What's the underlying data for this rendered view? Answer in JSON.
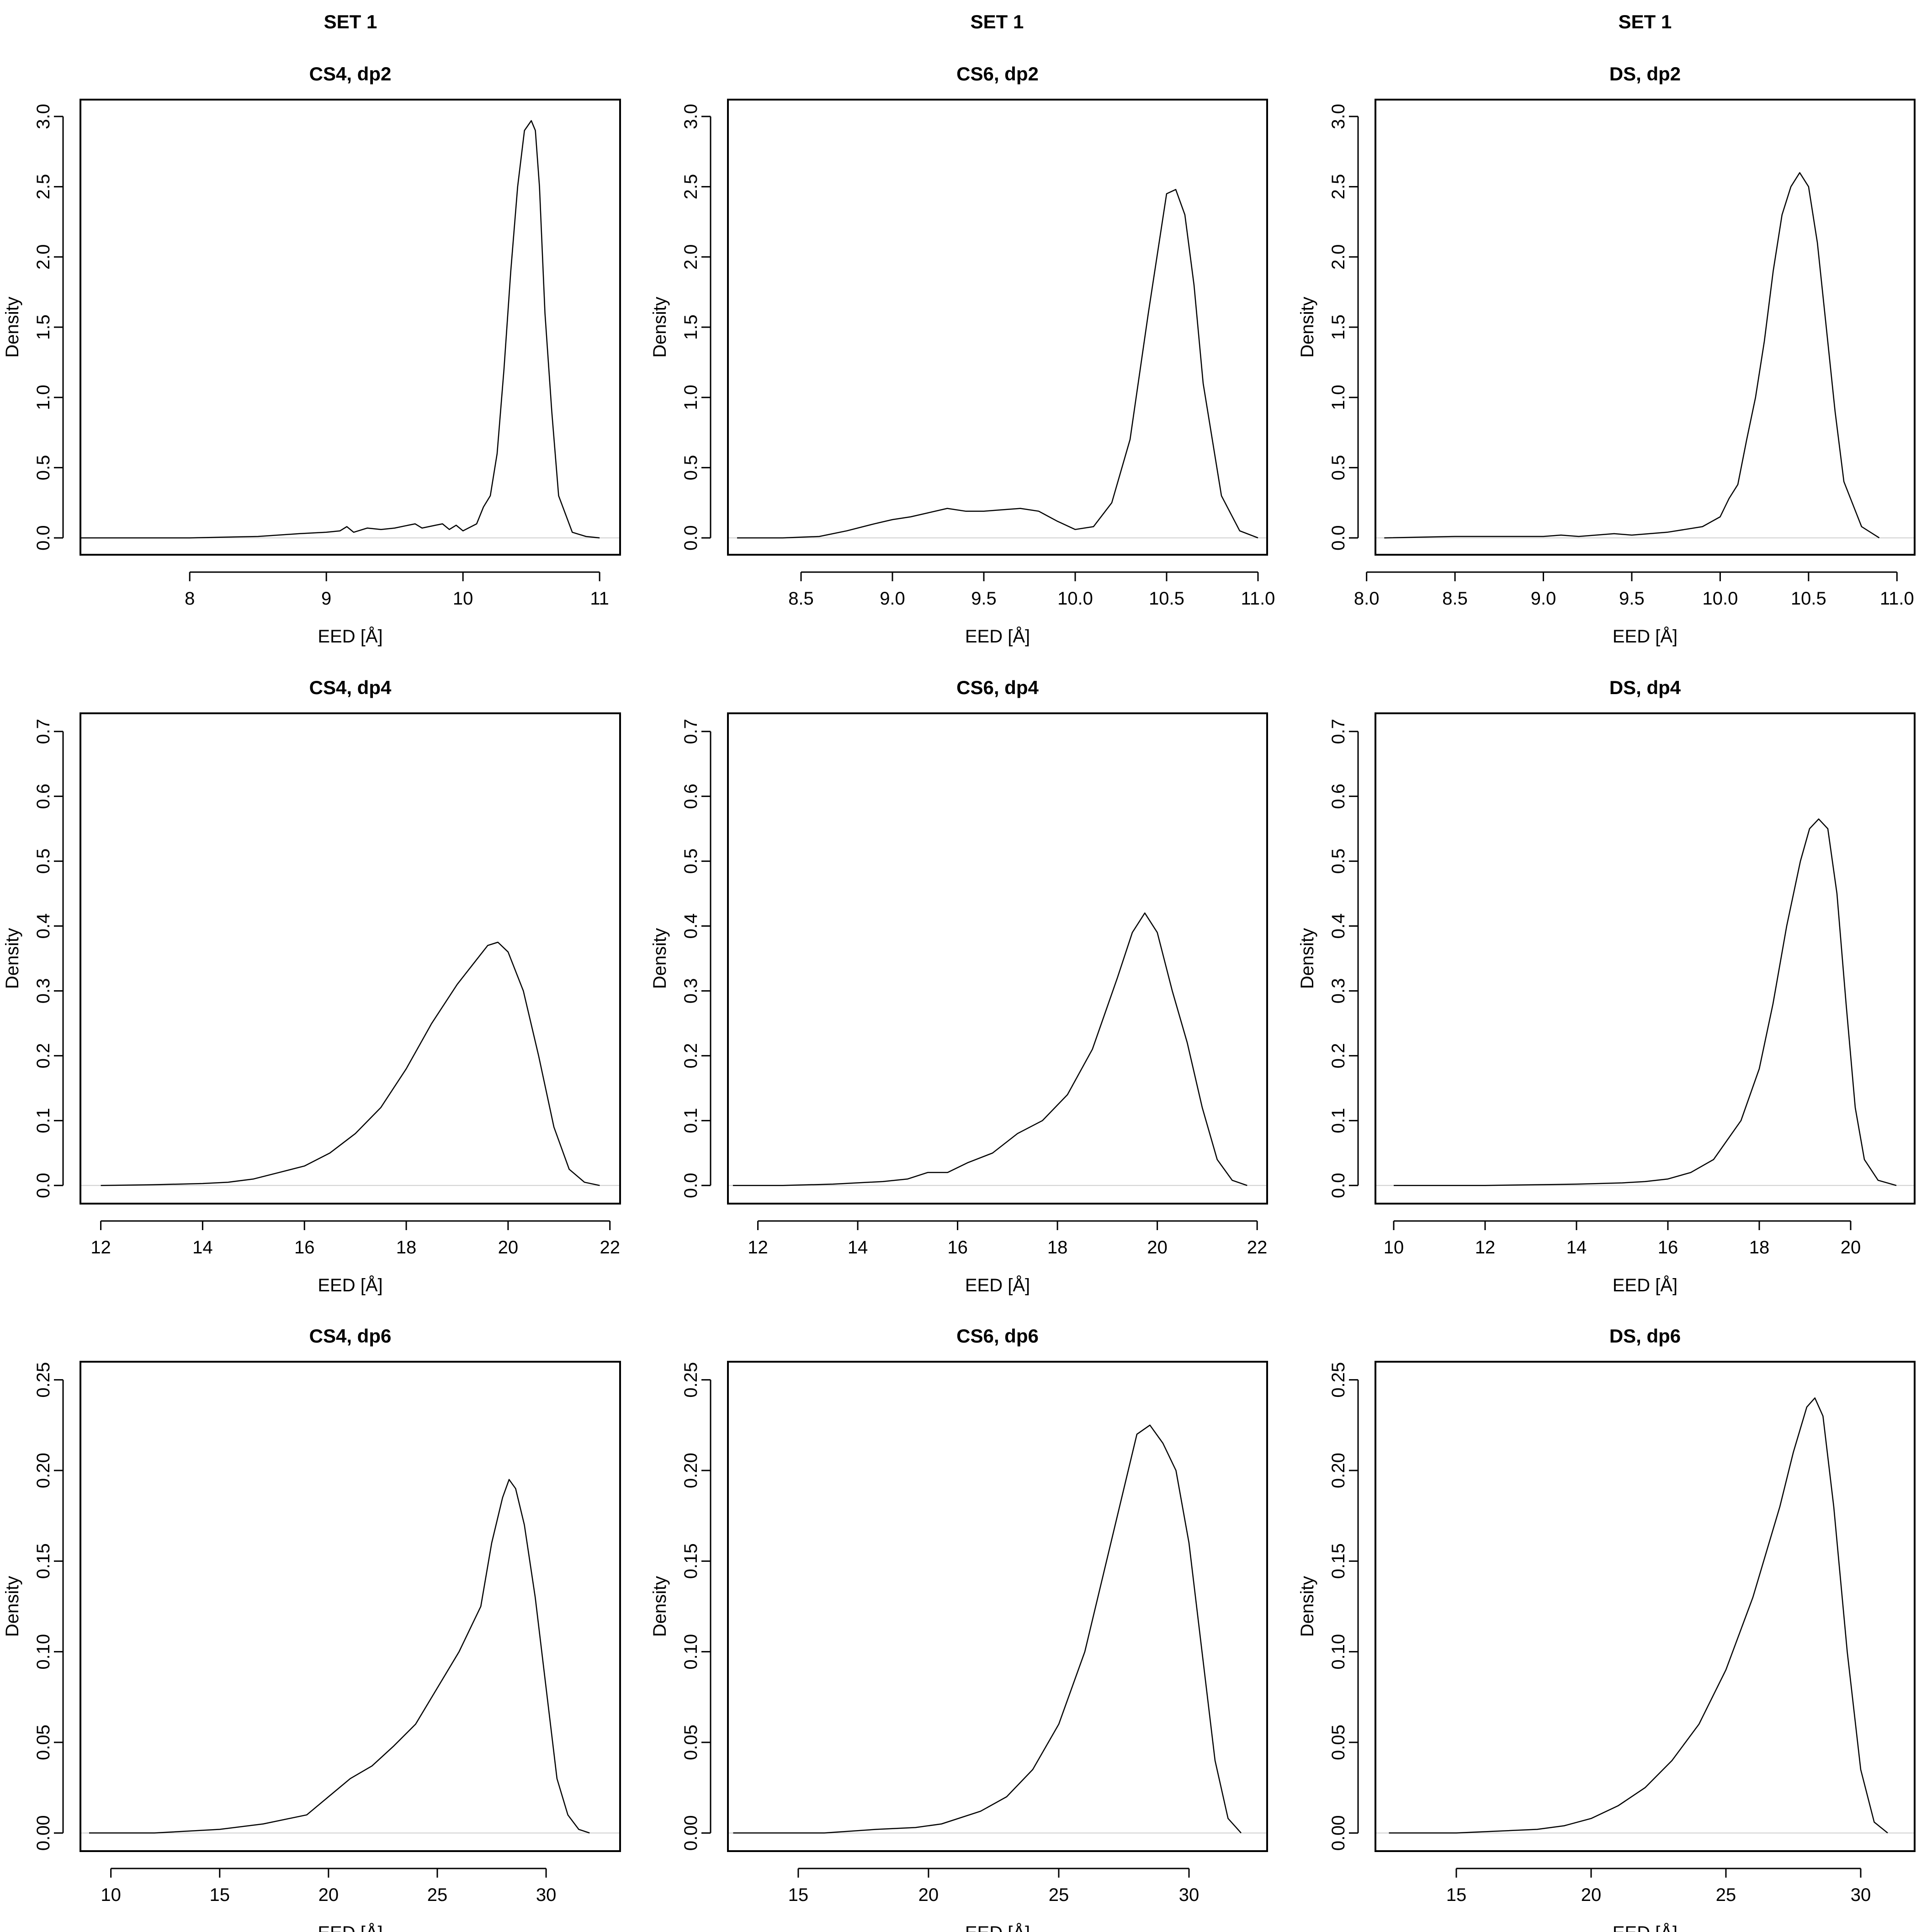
{
  "figure": {
    "column_titles": [
      "SET 1",
      "SET 1",
      "SET 1"
    ]
  },
  "chart_data": [
    {
      "type": "line",
      "title": "CS4, dp2",
      "xlabel": "EED [Å]",
      "ylabel": "Density",
      "xlim": [
        7.2,
        11.15
      ],
      "ylim": [
        -0.12,
        3.12
      ],
      "xticks": [
        8,
        9,
        10,
        11
      ],
      "xtick_labels": [
        "8",
        "9",
        "10",
        "11"
      ],
      "yticks": [
        0,
        0.5,
        1.0,
        1.5,
        2.0,
        2.5,
        3.0
      ],
      "ytick_labels": [
        "0.0",
        "0.5",
        "1.0",
        "1.5",
        "2.0",
        "2.5",
        "3.0"
      ],
      "x": [
        7.2,
        8.0,
        8.5,
        8.8,
        9.0,
        9.1,
        9.15,
        9.2,
        9.3,
        9.4,
        9.5,
        9.6,
        9.65,
        9.7,
        9.8,
        9.85,
        9.9,
        9.95,
        10.0,
        10.1,
        10.15,
        10.2,
        10.25,
        10.3,
        10.35,
        10.4,
        10.45,
        10.5,
        10.53,
        10.56,
        10.6,
        10.65,
        10.7,
        10.8,
        10.9,
        11.0
      ],
      "y": [
        0.0,
        0.0,
        0.01,
        0.03,
        0.04,
        0.05,
        0.08,
        0.04,
        0.07,
        0.06,
        0.07,
        0.09,
        0.1,
        0.07,
        0.09,
        0.1,
        0.06,
        0.09,
        0.05,
        0.1,
        0.22,
        0.3,
        0.6,
        1.2,
        1.9,
        2.5,
        2.9,
        2.97,
        2.9,
        2.5,
        1.6,
        0.9,
        0.3,
        0.04,
        0.01,
        0.0
      ]
    },
    {
      "type": "line",
      "title": "CS6, dp2",
      "xlabel": "EED [Å]",
      "ylabel": "Density",
      "xlim": [
        8.1,
        11.05
      ],
      "ylim": [
        -0.12,
        3.12
      ],
      "xticks": [
        8.5,
        9.0,
        9.5,
        10.0,
        10.5,
        11.0
      ],
      "xtick_labels": [
        "8.5",
        "9.0",
        "9.5",
        "10.0",
        "10.5",
        "11.0"
      ],
      "yticks": [
        0,
        0.5,
        1.0,
        1.5,
        2.0,
        2.5,
        3.0
      ],
      "ytick_labels": [
        "0.0",
        "0.5",
        "1.0",
        "1.5",
        "2.0",
        "2.5",
        "3.0"
      ],
      "x": [
        8.15,
        8.4,
        8.6,
        8.75,
        8.9,
        9.0,
        9.1,
        9.2,
        9.3,
        9.4,
        9.5,
        9.6,
        9.7,
        9.8,
        9.9,
        10.0,
        10.1,
        10.2,
        10.3,
        10.4,
        10.5,
        10.55,
        10.6,
        10.65,
        10.7,
        10.8,
        10.9,
        11.0
      ],
      "y": [
        0.0,
        0.0,
        0.01,
        0.05,
        0.1,
        0.13,
        0.15,
        0.18,
        0.21,
        0.19,
        0.19,
        0.2,
        0.21,
        0.19,
        0.12,
        0.06,
        0.08,
        0.25,
        0.7,
        1.6,
        2.45,
        2.48,
        2.3,
        1.8,
        1.1,
        0.3,
        0.05,
        0.0
      ]
    },
    {
      "type": "line",
      "title": "DS, dp2",
      "xlabel": "EED [Å]",
      "ylabel": "Density",
      "xlim": [
        8.05,
        11.1
      ],
      "ylim": [
        -0.12,
        3.12
      ],
      "xticks": [
        8.0,
        8.5,
        9.0,
        9.5,
        10.0,
        10.5,
        11.0
      ],
      "xtick_labels": [
        "8.0",
        "8.5",
        "9.0",
        "9.5",
        "10.0",
        "10.5",
        "11.0"
      ],
      "yticks": [
        0,
        0.5,
        1.0,
        1.5,
        2.0,
        2.5,
        3.0
      ],
      "ytick_labels": [
        "0.0",
        "0.5",
        "1.0",
        "1.5",
        "2.0",
        "2.5",
        "3.0"
      ],
      "x": [
        8.1,
        8.5,
        9.0,
        9.1,
        9.2,
        9.4,
        9.5,
        9.7,
        9.8,
        9.9,
        10.0,
        10.05,
        10.1,
        10.15,
        10.2,
        10.25,
        10.3,
        10.35,
        10.4,
        10.45,
        10.5,
        10.55,
        10.6,
        10.65,
        10.7,
        10.8,
        10.9
      ],
      "y": [
        0.0,
        0.01,
        0.01,
        0.02,
        0.01,
        0.03,
        0.02,
        0.04,
        0.06,
        0.08,
        0.15,
        0.28,
        0.38,
        0.7,
        1.0,
        1.4,
        1.9,
        2.3,
        2.5,
        2.6,
        2.5,
        2.1,
        1.5,
        0.9,
        0.4,
        0.08,
        0.0
      ]
    },
    {
      "type": "line",
      "title": "CS4, dp4",
      "xlabel": "EED [Å]",
      "ylabel": "Density",
      "xlim": [
        11.6,
        22.2
      ],
      "ylim": [
        -0.028,
        0.728
      ],
      "xticks": [
        12,
        14,
        16,
        18,
        20,
        22
      ],
      "xtick_labels": [
        "12",
        "14",
        "16",
        "18",
        "20",
        "22"
      ],
      "yticks": [
        0,
        0.1,
        0.2,
        0.3,
        0.4,
        0.5,
        0.6,
        0.7
      ],
      "ytick_labels": [
        "0.0",
        "0.1",
        "0.2",
        "0.3",
        "0.4",
        "0.5",
        "0.6",
        "0.7"
      ],
      "x": [
        12.0,
        13.0,
        14.0,
        14.5,
        15.0,
        15.5,
        16.0,
        16.5,
        17.0,
        17.5,
        18.0,
        18.5,
        19.0,
        19.3,
        19.6,
        19.8,
        20.0,
        20.3,
        20.6,
        20.9,
        21.2,
        21.5,
        21.8
      ],
      "y": [
        0.0,
        0.001,
        0.003,
        0.005,
        0.01,
        0.02,
        0.03,
        0.05,
        0.08,
        0.12,
        0.18,
        0.25,
        0.31,
        0.34,
        0.37,
        0.375,
        0.36,
        0.3,
        0.2,
        0.09,
        0.025,
        0.005,
        0.0
      ]
    },
    {
      "type": "line",
      "title": "CS6, dp4",
      "xlabel": "EED [Å]",
      "ylabel": "Density",
      "xlim": [
        11.4,
        22.2
      ],
      "ylim": [
        -0.028,
        0.728
      ],
      "xticks": [
        12,
        14,
        16,
        18,
        20,
        22
      ],
      "xtick_labels": [
        "12",
        "14",
        "16",
        "18",
        "20",
        "22"
      ],
      "yticks": [
        0,
        0.1,
        0.2,
        0.3,
        0.4,
        0.5,
        0.6,
        0.7
      ],
      "ytick_labels": [
        "0.0",
        "0.1",
        "0.2",
        "0.3",
        "0.4",
        "0.5",
        "0.6",
        "0.7"
      ],
      "x": [
        11.5,
        12.5,
        13.5,
        14.5,
        15.0,
        15.4,
        15.8,
        16.2,
        16.7,
        17.2,
        17.7,
        18.2,
        18.7,
        19.2,
        19.5,
        19.75,
        20.0,
        20.3,
        20.6,
        20.9,
        21.2,
        21.5,
        21.8
      ],
      "y": [
        0.0,
        0.0,
        0.002,
        0.006,
        0.01,
        0.02,
        0.02,
        0.035,
        0.05,
        0.08,
        0.1,
        0.14,
        0.21,
        0.32,
        0.39,
        0.42,
        0.39,
        0.3,
        0.22,
        0.12,
        0.04,
        0.008,
        0.0
      ]
    },
    {
      "type": "line",
      "title": "DS, dp4",
      "xlabel": "EED [Å]",
      "ylabel": "Density",
      "xlim": [
        9.6,
        21.4
      ],
      "ylim": [
        -0.028,
        0.728
      ],
      "xticks": [
        10,
        12,
        14,
        16,
        18,
        20
      ],
      "xtick_labels": [
        "10",
        "12",
        "14",
        "16",
        "18",
        "20"
      ],
      "yticks": [
        0,
        0.1,
        0.2,
        0.3,
        0.4,
        0.5,
        0.6,
        0.7
      ],
      "ytick_labels": [
        "0.0",
        "0.1",
        "0.2",
        "0.3",
        "0.4",
        "0.5",
        "0.6",
        "0.7"
      ],
      "x": [
        10.0,
        12.0,
        14.0,
        15.0,
        15.5,
        16.0,
        16.5,
        17.0,
        17.3,
        17.6,
        18.0,
        18.3,
        18.6,
        18.9,
        19.1,
        19.3,
        19.5,
        19.7,
        19.9,
        20.1,
        20.3,
        20.6,
        21.0
      ],
      "y": [
        0.0,
        0.0,
        0.002,
        0.004,
        0.006,
        0.01,
        0.02,
        0.04,
        0.07,
        0.1,
        0.18,
        0.28,
        0.4,
        0.5,
        0.55,
        0.565,
        0.55,
        0.45,
        0.28,
        0.12,
        0.04,
        0.008,
        0.0
      ]
    },
    {
      "type": "line",
      "title": "CS4, dp6",
      "xlabel": "EED [Å]",
      "ylabel": "Density",
      "xlim": [
        8.6,
        33.4
      ],
      "ylim": [
        -0.01,
        0.26
      ],
      "xticks": [
        10,
        15,
        20,
        25,
        30
      ],
      "xtick_labels": [
        "10",
        "15",
        "20",
        "25",
        "30"
      ],
      "yticks": [
        0,
        0.05,
        0.1,
        0.15,
        0.2,
        0.25
      ],
      "ytick_labels": [
        "0.00",
        "0.05",
        "0.10",
        "0.15",
        "0.20",
        "0.25"
      ],
      "x": [
        9.0,
        12.0,
        15.0,
        17.0,
        19.0,
        20.0,
        21.0,
        22.0,
        23.0,
        24.0,
        25.0,
        26.0,
        27.0,
        27.5,
        28.0,
        28.3,
        28.6,
        29.0,
        29.5,
        30.0,
        30.5,
        31.0,
        31.5,
        32.0
      ],
      "y": [
        0.0,
        0.0,
        0.002,
        0.005,
        0.01,
        0.02,
        0.03,
        0.037,
        0.048,
        0.06,
        0.08,
        0.1,
        0.125,
        0.16,
        0.185,
        0.195,
        0.19,
        0.17,
        0.13,
        0.08,
        0.03,
        0.01,
        0.002,
        0.0
      ]
    },
    {
      "type": "line",
      "title": "CS6, dp6",
      "xlabel": "EED [Å]",
      "ylabel": "Density",
      "xlim": [
        12.3,
        33.0
      ],
      "ylim": [
        -0.01,
        0.26
      ],
      "xticks": [
        15,
        20,
        25,
        30
      ],
      "xtick_labels": [
        "15",
        "20",
        "25",
        "30"
      ],
      "yticks": [
        0,
        0.05,
        0.1,
        0.15,
        0.2,
        0.25
      ],
      "ytick_labels": [
        "0.00",
        "0.05",
        "0.10",
        "0.15",
        "0.20",
        "0.25"
      ],
      "x": [
        12.5,
        16.0,
        18.0,
        19.5,
        20.5,
        22.0,
        23.0,
        24.0,
        25.0,
        26.0,
        26.5,
        27.0,
        27.5,
        28.0,
        28.5,
        29.0,
        29.5,
        30.0,
        30.5,
        31.0,
        31.5,
        32.0
      ],
      "y": [
        0.0,
        0.0,
        0.002,
        0.003,
        0.005,
        0.012,
        0.02,
        0.035,
        0.06,
        0.1,
        0.13,
        0.16,
        0.19,
        0.22,
        0.225,
        0.215,
        0.2,
        0.16,
        0.1,
        0.04,
        0.008,
        0.0
      ]
    },
    {
      "type": "line",
      "title": "DS, dp6",
      "xlabel": "EED [Å]",
      "ylabel": "Density",
      "xlim": [
        12.0,
        32.0
      ],
      "ylim": [
        -0.01,
        0.26
      ],
      "xticks": [
        15,
        20,
        25,
        30
      ],
      "xtick_labels": [
        "15",
        "20",
        "25",
        "30"
      ],
      "yticks": [
        0,
        0.05,
        0.1,
        0.15,
        0.2,
        0.25
      ],
      "ytick_labels": [
        "0.00",
        "0.05",
        "0.10",
        "0.15",
        "0.20",
        "0.25"
      ],
      "x": [
        12.5,
        15.0,
        18.0,
        19.0,
        20.0,
        21.0,
        22.0,
        23.0,
        24.0,
        25.0,
        26.0,
        27.0,
        27.5,
        28.0,
        28.3,
        28.6,
        29.0,
        29.5,
        30.0,
        30.5,
        31.0
      ],
      "y": [
        0.0,
        0.0,
        0.002,
        0.004,
        0.008,
        0.015,
        0.025,
        0.04,
        0.06,
        0.09,
        0.13,
        0.18,
        0.21,
        0.235,
        0.24,
        0.23,
        0.18,
        0.1,
        0.035,
        0.006,
        0.0
      ]
    }
  ]
}
